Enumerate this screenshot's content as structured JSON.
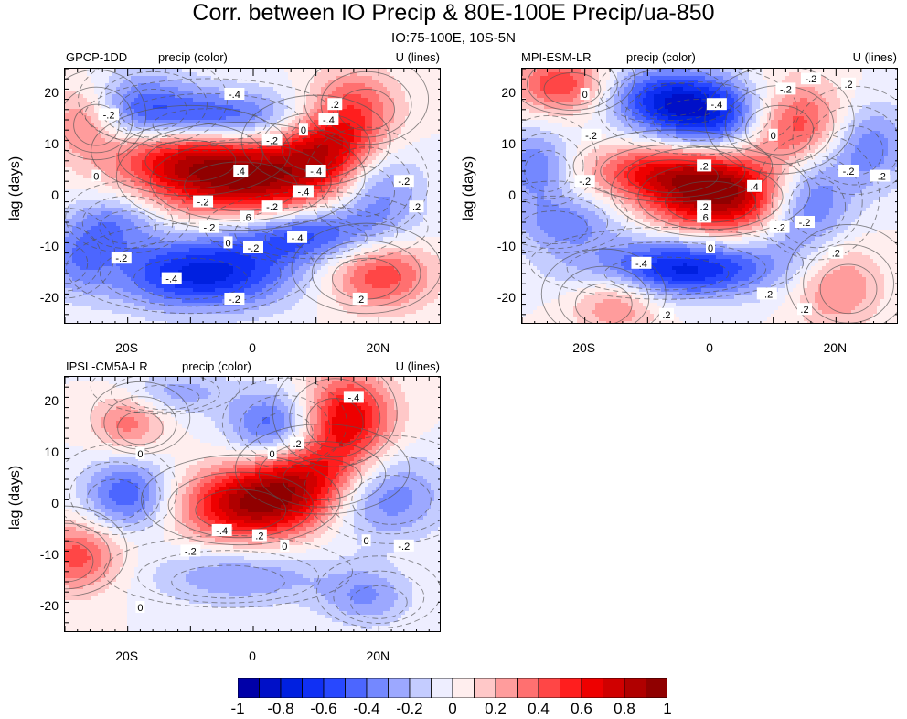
{
  "figure": {
    "title": "Corr. between IO Precip & 80E-100E Precip/ua-850",
    "subtitle": "IO:75-100E, 10S-5N"
  },
  "chart_data": [
    {
      "type": "heatmap",
      "model": "GPCP-1DD",
      "center_label": "precip (color)",
      "right_label": "U (lines)",
      "ylabel": "lag (days)",
      "xlim": [
        -30,
        30
      ],
      "ylim": [
        -25,
        25
      ],
      "xticks": [
        {
          "value": -20,
          "label": "20S"
        },
        {
          "value": 0,
          "label": "0"
        },
        {
          "value": 20,
          "label": "20N"
        }
      ],
      "yticks": [
        {
          "value": 20,
          "label": "20"
        },
        {
          "value": 10,
          "label": "10"
        },
        {
          "value": 0,
          "label": "0"
        },
        {
          "value": -10,
          "label": "-10"
        },
        {
          "value": -20,
          "label": "-20"
        }
      ],
      "blobs": [
        {
          "x": 0,
          "y": 3,
          "sx": 10,
          "sy": 6,
          "v": 0.85
        },
        {
          "x": -12,
          "y": 8,
          "sx": 8,
          "sy": 5,
          "v": 0.55
        },
        {
          "x": 12,
          "y": 10,
          "sx": 6,
          "sy": 5,
          "v": 0.6
        },
        {
          "x": 16,
          "y": 18,
          "sx": 5,
          "sy": 5,
          "v": 0.4
        },
        {
          "x": -5,
          "y": 15,
          "sx": 10,
          "sy": 4,
          "v": -0.6
        },
        {
          "x": -18,
          "y": 18,
          "sx": 6,
          "sy": 5,
          "v": -0.35
        },
        {
          "x": -8,
          "y": -15,
          "sx": 10,
          "sy": 5,
          "v": -0.75
        },
        {
          "x": 8,
          "y": -7,
          "sx": 9,
          "sy": 4,
          "v": -0.6
        },
        {
          "x": 20,
          "y": 2,
          "sx": 5,
          "sy": 6,
          "v": -0.4
        },
        {
          "x": -22,
          "y": -5,
          "sx": 5,
          "sy": 4,
          "v": -0.35
        },
        {
          "x": 20,
          "y": -15,
          "sx": 6,
          "sy": 5,
          "v": 0.5
        },
        {
          "x": -27,
          "y": 15,
          "sx": 4,
          "sy": 5,
          "v": 0.35
        },
        {
          "x": -28,
          "y": -12,
          "sx": 4,
          "sy": 5,
          "v": -0.3
        }
      ],
      "contour_labels": [
        {
          "x": -3,
          "y": 20,
          "t": "-.4"
        },
        {
          "x": -23,
          "y": 16,
          "t": "-.2"
        },
        {
          "x": -25,
          "y": 4,
          "t": "0"
        },
        {
          "x": 3,
          "y": 11,
          "t": "-.2"
        },
        {
          "x": 8,
          "y": 13,
          "t": "0"
        },
        {
          "x": 12,
          "y": 15,
          "t": "-.4"
        },
        {
          "x": 13,
          "y": 18,
          "t": ".2"
        },
        {
          "x": -2,
          "y": 5,
          "t": ".4"
        },
        {
          "x": 10,
          "y": 5,
          "t": "-.4"
        },
        {
          "x": 8,
          "y": 1,
          "t": "-.4"
        },
        {
          "x": -8,
          "y": -1,
          "t": "-.2"
        },
        {
          "x": 3,
          "y": -2,
          "t": "-.2"
        },
        {
          "x": -1,
          "y": -4,
          "t": ".6"
        },
        {
          "x": 24,
          "y": 3,
          "t": "-.2"
        },
        {
          "x": 26,
          "y": -2,
          "t": ".2"
        },
        {
          "x": -7,
          "y": -6,
          "t": "-.2"
        },
        {
          "x": -4,
          "y": -9,
          "t": "0"
        },
        {
          "x": 0,
          "y": -10,
          "t": "-.2"
        },
        {
          "x": 7,
          "y": -8,
          "t": "-.4"
        },
        {
          "x": -21,
          "y": -12,
          "t": "-.2"
        },
        {
          "x": -13,
          "y": -16,
          "t": "-.4"
        },
        {
          "x": -3,
          "y": -20,
          "t": "-.2"
        },
        {
          "x": 17,
          "y": -20,
          "t": ".2"
        }
      ]
    },
    {
      "type": "heatmap",
      "model": "MPI-ESM-LR",
      "center_label": "precip (color)",
      "right_label": "U (lines)",
      "ylabel": "lag (days)",
      "xlim": [
        -30,
        30
      ],
      "ylim": [
        -25,
        25
      ],
      "xticks": [
        {
          "value": -20,
          "label": "20S"
        },
        {
          "value": 0,
          "label": "0"
        },
        {
          "value": 20,
          "label": "20N"
        }
      ],
      "yticks": [
        {
          "value": 20,
          "label": "20"
        },
        {
          "value": 10,
          "label": "10"
        },
        {
          "value": 0,
          "label": "0"
        },
        {
          "value": -10,
          "label": "-10"
        },
        {
          "value": -20,
          "label": "-20"
        }
      ],
      "blobs": [
        {
          "x": 2,
          "y": 0,
          "sx": 8,
          "sy": 5,
          "v": 0.9
        },
        {
          "x": -8,
          "y": 5,
          "sx": 8,
          "sy": 4,
          "v": 0.55
        },
        {
          "x": 13,
          "y": 14,
          "sx": 6,
          "sy": 6,
          "v": 0.65
        },
        {
          "x": -24,
          "y": 22,
          "sx": 5,
          "sy": 4,
          "v": 0.5
        },
        {
          "x": 0,
          "y": 16,
          "sx": 8,
          "sy": 5,
          "v": -0.75
        },
        {
          "x": -8,
          "y": 20,
          "sx": 6,
          "sy": 4,
          "v": -0.4
        },
        {
          "x": -5,
          "y": -14,
          "sx": 11,
          "sy": 4,
          "v": -0.75
        },
        {
          "x": 15,
          "y": -1,
          "sx": 5,
          "sy": 7,
          "v": -0.55
        },
        {
          "x": 25,
          "y": 10,
          "sx": 5,
          "sy": 6,
          "v": -0.4
        },
        {
          "x": -28,
          "y": 6,
          "sx": 4,
          "sy": 5,
          "v": -0.4
        },
        {
          "x": -23,
          "y": -5,
          "sx": 6,
          "sy": 4,
          "v": -0.35
        },
        {
          "x": 20,
          "y": -17,
          "sx": 5,
          "sy": 6,
          "v": 0.35
        },
        {
          "x": -15,
          "y": -20,
          "sx": 5,
          "sy": 5,
          "v": 0.35
        }
      ],
      "contour_labels": [
        {
          "x": 1,
          "y": 18,
          "t": "-.4"
        },
        {
          "x": 12,
          "y": 21,
          "t": "-.2"
        },
        {
          "x": 16,
          "y": 23,
          "t": "-.2"
        },
        {
          "x": 22,
          "y": 22,
          "t": ".2"
        },
        {
          "x": -20,
          "y": 20,
          "t": "0"
        },
        {
          "x": -19,
          "y": 12,
          "t": "-.2"
        },
        {
          "x": 10,
          "y": 12,
          "t": "0"
        },
        {
          "x": -20,
          "y": 3,
          "t": "-.2"
        },
        {
          "x": -1,
          "y": 6,
          "t": ".2"
        },
        {
          "x": 7,
          "y": 2,
          "t": ".4"
        },
        {
          "x": -1,
          "y": -2,
          "t": ".2"
        },
        {
          "x": -1,
          "y": -4,
          "t": ".6"
        },
        {
          "x": 22,
          "y": 5,
          "t": "-.2"
        },
        {
          "x": 27,
          "y": 4,
          "t": "-.2"
        },
        {
          "x": 11,
          "y": -6,
          "t": "-.2"
        },
        {
          "x": 15,
          "y": -5,
          "t": "-.2"
        },
        {
          "x": 0,
          "y": -10,
          "t": "0"
        },
        {
          "x": -11,
          "y": -13,
          "t": "-.4"
        },
        {
          "x": 20,
          "y": -11,
          "t": ".2"
        },
        {
          "x": 9,
          "y": -19,
          "t": "-.2"
        },
        {
          "x": 15,
          "y": -22,
          "t": ".2"
        },
        {
          "x": -7,
          "y": -23,
          "t": ".2"
        }
      ]
    },
    {
      "type": "heatmap",
      "model": "IPSL-CM5A-LR",
      "center_label": "precip (color)",
      "right_label": "U (lines)",
      "ylabel": "lag (days)",
      "xlim": [
        -30,
        30
      ],
      "ylim": [
        -25,
        25
      ],
      "xticks": [
        {
          "value": -20,
          "label": "20S"
        },
        {
          "value": 0,
          "label": "0"
        },
        {
          "value": 20,
          "label": "20N"
        }
      ],
      "yticks": [
        {
          "value": 20,
          "label": "20"
        },
        {
          "value": 10,
          "label": "10"
        },
        {
          "value": 0,
          "label": "0"
        },
        {
          "value": -10,
          "label": "-10"
        },
        {
          "value": -20,
          "label": "-20"
        }
      ],
      "blobs": [
        {
          "x": 0,
          "y": 0,
          "sx": 8,
          "sy": 5,
          "v": 0.85
        },
        {
          "x": 9,
          "y": 6,
          "sx": 7,
          "sy": 5,
          "v": 0.6
        },
        {
          "x": 15,
          "y": 17,
          "sx": 5,
          "sy": 6,
          "v": 0.7
        },
        {
          "x": -20,
          "y": 16,
          "sx": 4,
          "sy": 4,
          "v": 0.35
        },
        {
          "x": -28,
          "y": -10,
          "sx": 5,
          "sy": 5,
          "v": 0.45
        },
        {
          "x": 3,
          "y": 15,
          "sx": 5,
          "sy": 5,
          "v": -0.5
        },
        {
          "x": -20,
          "y": 2,
          "sx": 5,
          "sy": 5,
          "v": -0.5
        },
        {
          "x": 20,
          "y": 2,
          "sx": 7,
          "sy": 6,
          "v": -0.45
        },
        {
          "x": -2,
          "y": -14,
          "sx": 10,
          "sy": 4,
          "v": -0.3
        },
        {
          "x": 18,
          "y": -18,
          "sx": 5,
          "sy": 4,
          "v": -0.3
        },
        {
          "x": -12,
          "y": 22,
          "sx": 6,
          "sy": 3,
          "v": -0.25
        }
      ],
      "contour_labels": [
        {
          "x": 16,
          "y": 21,
          "t": "-.4"
        },
        {
          "x": 7,
          "y": 12,
          "t": ".2"
        },
        {
          "x": 3,
          "y": 10,
          "t": "0"
        },
        {
          "x": -18,
          "y": 10,
          "t": "0"
        },
        {
          "x": -5,
          "y": -5,
          "t": "-.4"
        },
        {
          "x": 1,
          "y": -6,
          "t": ".2"
        },
        {
          "x": 5,
          "y": -8,
          "t": "0"
        },
        {
          "x": -10,
          "y": -9,
          "t": "-.2"
        },
        {
          "x": 18,
          "y": -7,
          "t": "0"
        },
        {
          "x": 24,
          "y": -8,
          "t": "-.2"
        },
        {
          "x": -18,
          "y": -20,
          "t": "0"
        }
      ]
    }
  ],
  "colorbar": {
    "levels": [
      -1,
      -0.9,
      -0.8,
      -0.7,
      -0.6,
      -0.5,
      -0.4,
      -0.3,
      -0.2,
      -0.1,
      0,
      0.1,
      0.2,
      0.3,
      0.4,
      0.5,
      0.6,
      0.7,
      0.8,
      0.9,
      1
    ],
    "colors": [
      "#0000a8",
      "#0010c8",
      "#0020e0",
      "#1030f4",
      "#2848ff",
      "#4c66ff",
      "#7488ff",
      "#9ca8ff",
      "#c4ccff",
      "#eeeeff",
      "#ffeeee",
      "#ffc8c8",
      "#ff9c9c",
      "#ff7070",
      "#ff4646",
      "#ff1e1e",
      "#ee0000",
      "#d00000",
      "#b00000",
      "#900000"
    ],
    "labels": [
      "-1",
      "-0.8",
      "-0.6",
      "-0.4",
      "-0.2",
      "0",
      "0.2",
      "0.4",
      "0.6",
      "0.8",
      "1"
    ]
  }
}
